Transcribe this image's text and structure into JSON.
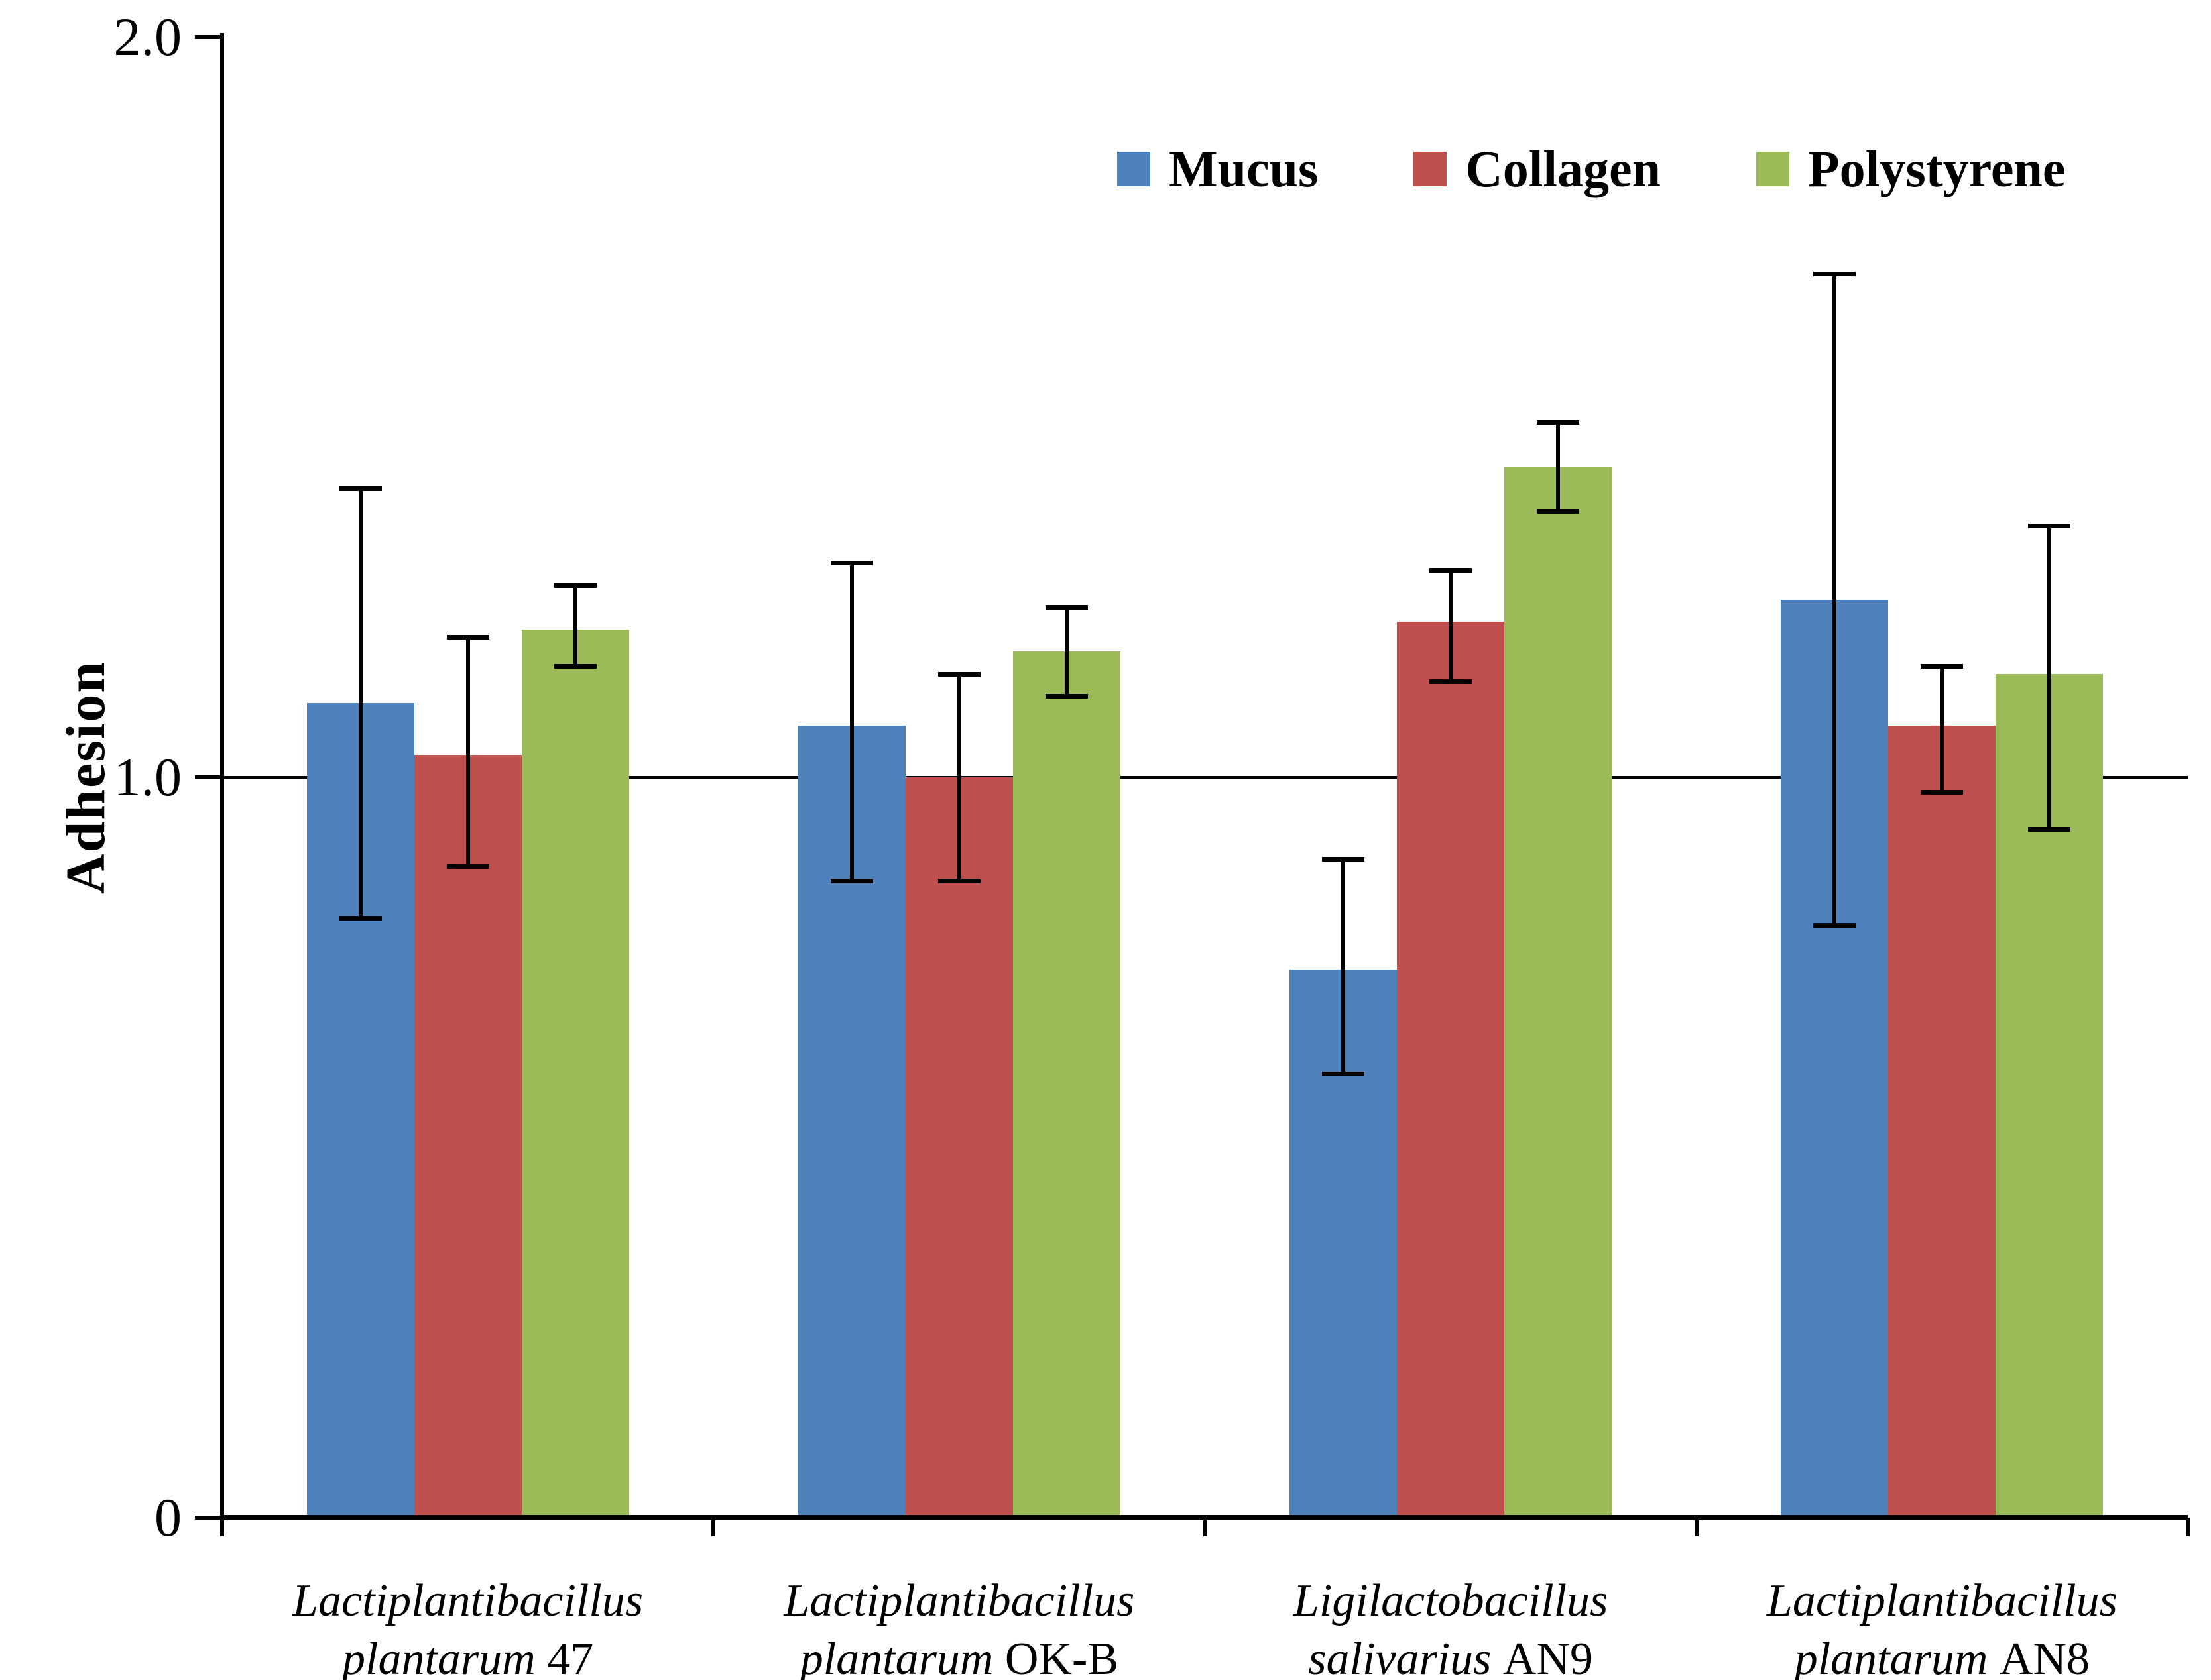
{
  "chart_data": {
    "type": "bar",
    "title": "",
    "ylabel": "Adhesion",
    "xlabel": "",
    "ylim": [
      0,
      2
    ],
    "yticks": [
      {
        "value": 0,
        "label": "0"
      },
      {
        "value": 1.0,
        "label": "1.0"
      },
      {
        "value": 2.0,
        "label": "2.0"
      }
    ],
    "reference_line": 1.0,
    "grid": false,
    "legend_position": "top-right-inside",
    "error_bars": true,
    "categories": [
      {
        "line1": "Lactiplantibacillus",
        "line2_italic": "plantarum",
        "line2_plain": "47"
      },
      {
        "line1": "Lactiplantibacillus",
        "line2_italic": "plantarum",
        "line2_plain": "OK-B"
      },
      {
        "line1": "Ligilactobacillus",
        "line2_italic": "salivarius",
        "line2_plain": "AN9"
      },
      {
        "line1": "Lactiplantibacillus",
        "line2_italic": "plantarum",
        "line2_plain": "AN8"
      }
    ],
    "series": [
      {
        "name": "Mucus",
        "color": "#4F81BD",
        "values": [
          1.1,
          1.07,
          0.74,
          1.24
        ],
        "error_high": [
          1.39,
          1.29,
          0.89,
          1.68
        ],
        "error_low": [
          0.81,
          0.86,
          0.6,
          0.8
        ]
      },
      {
        "name": "Collagen",
        "color": "#C0504D",
        "values": [
          1.03,
          1.0,
          1.21,
          1.07
        ],
        "error_high": [
          1.19,
          1.14,
          1.28,
          1.15
        ],
        "error_low": [
          0.88,
          0.86,
          1.13,
          0.98
        ]
      },
      {
        "name": "Polystyrene",
        "color": "#9BBB59",
        "values": [
          1.2,
          1.17,
          1.42,
          1.14
        ],
        "error_high": [
          1.26,
          1.23,
          1.48,
          1.34
        ],
        "error_low": [
          1.15,
          1.11,
          1.36,
          0.93
        ]
      }
    ],
    "axis_color": "#000000",
    "error_bar_color": "#000000"
  }
}
